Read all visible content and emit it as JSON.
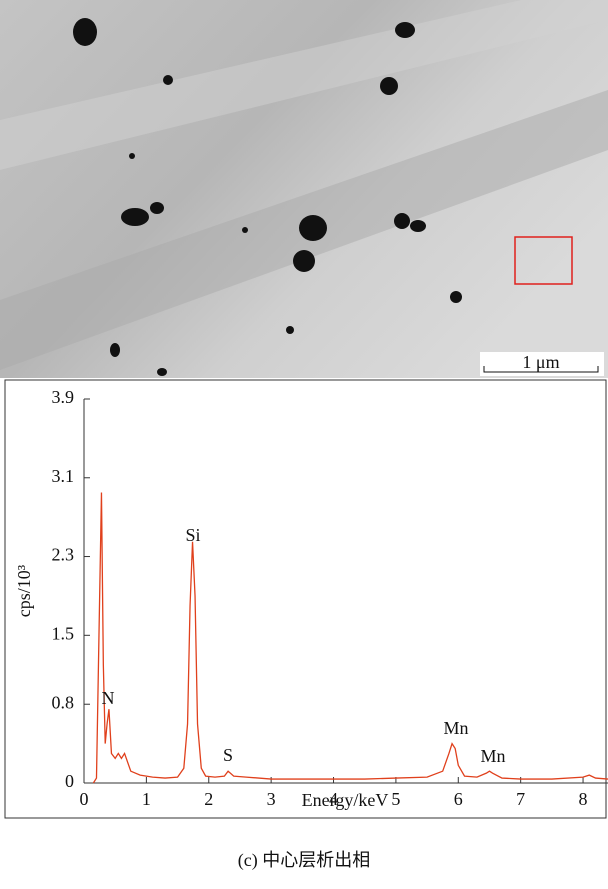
{
  "chart_data": {
    "type": "line",
    "xlabel": "Energy/keV",
    "ylabel": "cps/10³",
    "x": [
      0.15,
      0.2,
      0.24,
      0.28,
      0.31,
      0.34,
      0.37,
      0.4,
      0.44,
      0.5,
      0.55,
      0.6,
      0.65,
      0.75,
      0.9,
      1.1,
      1.3,
      1.5,
      1.6,
      1.66,
      1.7,
      1.74,
      1.78,
      1.82,
      1.88,
      1.95,
      2.1,
      2.25,
      2.31,
      2.4,
      2.6,
      3.0,
      3.5,
      4.0,
      4.5,
      5.0,
      5.5,
      5.75,
      5.85,
      5.9,
      5.95,
      6.0,
      6.1,
      6.3,
      6.45,
      6.5,
      6.55,
      6.7,
      7.0,
      7.5,
      8.0,
      8.1,
      8.2,
      8.4
    ],
    "values": [
      0,
      0.05,
      1.5,
      2.95,
      1.2,
      0.4,
      0.6,
      0.75,
      0.3,
      0.25,
      0.3,
      0.25,
      0.3,
      0.12,
      0.08,
      0.06,
      0.05,
      0.06,
      0.15,
      0.6,
      1.8,
      2.45,
      1.9,
      0.6,
      0.15,
      0.07,
      0.06,
      0.07,
      0.12,
      0.07,
      0.06,
      0.04,
      0.04,
      0.04,
      0.04,
      0.05,
      0.06,
      0.12,
      0.3,
      0.4,
      0.35,
      0.18,
      0.07,
      0.06,
      0.1,
      0.12,
      0.1,
      0.05,
      0.04,
      0.04,
      0.06,
      0.08,
      0.05,
      0.04
    ],
    "color": "#e0401c",
    "xlim": [
      0,
      8.4
    ],
    "xticks": [
      0,
      1,
      2,
      3,
      4,
      5,
      6,
      7,
      8
    ],
    "ylim": [
      0,
      3.9
    ],
    "yticks": [
      0,
      0.8,
      1.5,
      2.3,
      3.1,
      3.9
    ],
    "annotations": [
      "N",
      "Si",
      "S",
      "Mn",
      "Mn"
    ]
  },
  "figure": {
    "scale_bar": "1 μm",
    "caption": "(c) 中心层析出相"
  }
}
